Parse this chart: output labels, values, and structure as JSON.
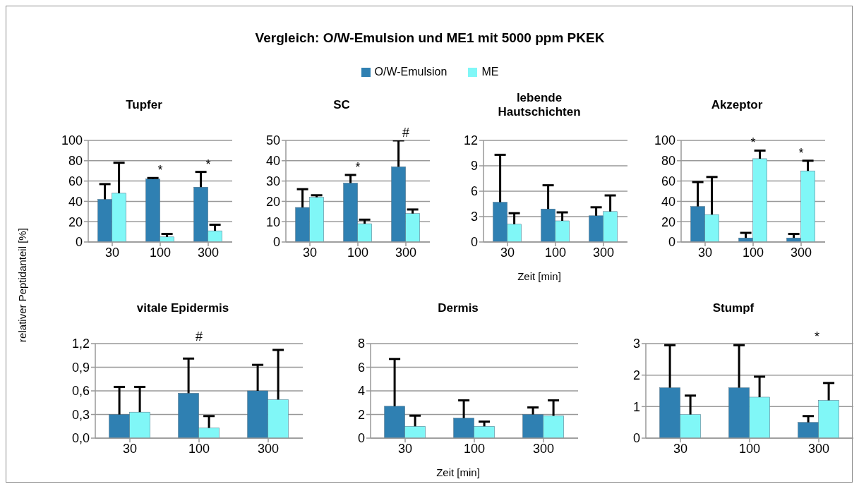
{
  "chart_data": [
    {
      "type": "other",
      "title": "Vergleich: O/W-Emulsion und ME1 mit 5000 ppm PKEK"
    },
    {
      "type": "bar",
      "title": "Tupfer",
      "ylabel": "relativer Peptidanteil [%]",
      "legend": "top",
      "grid": "y",
      "categories": [
        "30",
        "100",
        "300"
      ],
      "ylim": [
        0,
        100
      ],
      "yticks": [
        0,
        20,
        40,
        60,
        80,
        100
      ],
      "series": [
        {
          "name": "O/W-Emulsion",
          "color": "#2f80b2",
          "values": [
            42,
            62,
            54
          ],
          "errors": [
            [
              42,
              57
            ],
            [
              62,
              63
            ],
            [
              54,
              69
            ]
          ]
        },
        {
          "name": "ME",
          "color": "#80f7f7",
          "values": [
            48,
            5,
            11
          ],
          "errors": [
            [
              48,
              78
            ],
            [
              5,
              8
            ],
            [
              11,
              17
            ]
          ]
        }
      ],
      "annotations": [
        {
          "text": "*",
          "x": "100",
          "y": 63
        },
        {
          "text": "*",
          "x": "300",
          "y": 69
        }
      ]
    },
    {
      "type": "bar",
      "title": "SC",
      "grid": "y",
      "categories": [
        "30",
        "100",
        "300"
      ],
      "ylim": [
        0,
        50
      ],
      "yticks": [
        0,
        10,
        20,
        30,
        40,
        50
      ],
      "series": [
        {
          "color": "#2f80b2",
          "values": [
            17,
            29,
            37
          ],
          "errors": [
            [
              17,
              26
            ],
            [
              29,
              33
            ],
            [
              37,
              50
            ]
          ]
        },
        {
          "color": "#80f7f7",
          "values": [
            22,
            9,
            14
          ],
          "errors": [
            [
              22,
              23
            ],
            [
              9,
              11
            ],
            [
              14,
              16
            ]
          ]
        }
      ],
      "annotations": [
        {
          "text": "*",
          "x": "100",
          "y": 33
        },
        {
          "text": "#",
          "x": "300",
          "y": 50
        }
      ]
    },
    {
      "type": "bar",
      "title": "lebende Hautschichten",
      "xlabel": "Zeit [min]",
      "grid": "y",
      "categories": [
        "30",
        "100",
        "300"
      ],
      "ylim": [
        0,
        12
      ],
      "yticks": [
        0,
        3,
        6,
        9,
        12
      ],
      "series": [
        {
          "color": "#2f80b2",
          "values": [
            4.7,
            3.9,
            3.1
          ],
          "errors": [
            [
              4.7,
              10.3
            ],
            [
              3.9,
              6.7
            ],
            [
              3.1,
              4.1
            ]
          ]
        },
        {
          "color": "#80f7f7",
          "values": [
            2.1,
            2.5,
            3.6
          ],
          "errors": [
            [
              2.1,
              3.4
            ],
            [
              2.5,
              3.5
            ],
            [
              3.6,
              5.5
            ]
          ]
        }
      ]
    },
    {
      "type": "bar",
      "title": "Akzeptor",
      "grid": "y",
      "categories": [
        "30",
        "100",
        "300"
      ],
      "ylim": [
        0,
        100
      ],
      "yticks": [
        0,
        20,
        40,
        60,
        80,
        100
      ],
      "series": [
        {
          "color": "#2f80b2",
          "values": [
            35,
            4,
            4
          ],
          "errors": [
            [
              35,
              59
            ],
            [
              4,
              9
            ],
            [
              4,
              8
            ]
          ]
        },
        {
          "color": "#80f7f7",
          "values": [
            27,
            82,
            70
          ],
          "errors": [
            [
              27,
              64
            ],
            [
              82,
              90
            ],
            [
              70,
              80
            ]
          ]
        }
      ],
      "annotations": [
        {
          "text": "*",
          "x": "100",
          "y": 90
        },
        {
          "text": "*",
          "x": "300",
          "y": 80
        }
      ]
    },
    {
      "type": "bar",
      "title": "vitale Epidermis",
      "grid": "y",
      "categories": [
        "30",
        "100",
        "300"
      ],
      "ylim": [
        0,
        1.2
      ],
      "yticks": [
        {
          "value": 0,
          "label": "0,0"
        },
        {
          "value": 0.3,
          "label": "0,3"
        },
        {
          "value": 0.6,
          "label": "0,6"
        },
        {
          "value": 0.9,
          "label": "0,9"
        },
        {
          "value": 1.2,
          "label": "1,2"
        }
      ],
      "series": [
        {
          "color": "#2f80b2",
          "values": [
            0.3,
            0.57,
            0.6
          ],
          "errors": [
            [
              0.3,
              0.65
            ],
            [
              0.57,
              1.01
            ],
            [
              0.6,
              0.93
            ]
          ]
        },
        {
          "color": "#80f7f7",
          "values": [
            0.33,
            0.13,
            0.49
          ],
          "errors": [
            [
              0.33,
              0.65
            ],
            [
              0.13,
              0.28
            ],
            [
              0.49,
              1.12
            ]
          ]
        }
      ],
      "annotations": [
        "#"
      ]
    },
    {
      "type": "bar",
      "title": "Dermis",
      "xlabel": "Zeit [min]",
      "grid": "y",
      "categories": [
        "30",
        "100",
        "300"
      ],
      "ylim": [
        0,
        8
      ],
      "yticks": [
        0,
        2,
        4,
        6,
        8
      ],
      "series": [
        {
          "color": "#2f80b2",
          "values": [
            2.7,
            1.7,
            2.0
          ],
          "errors": [
            [
              2.7,
              6.7
            ],
            [
              1.7,
              3.2
            ],
            [
              2.0,
              2.6
            ]
          ]
        },
        {
          "color": "#80f7f7",
          "values": [
            1.0,
            1.0,
            1.9
          ],
          "errors": [
            [
              1.0,
              1.9
            ],
            [
              1.0,
              1.4
            ],
            [
              1.9,
              3.2
            ]
          ]
        }
      ]
    },
    {
      "type": "bar",
      "title": "Stumpf",
      "grid": "y",
      "categories": [
        "30",
        "100",
        "300"
      ],
      "ylim": [
        0,
        3
      ],
      "yticks": [
        0,
        1,
        2,
        3
      ],
      "series": [
        {
          "color": "#2f80b2",
          "values": [
            1.6,
            1.6,
            0.5
          ],
          "errors": [
            [
              1.6,
              2.95
            ],
            [
              1.6,
              2.95
            ],
            [
              0.5,
              0.7
            ]
          ]
        },
        {
          "color": "#80f7f7",
          "values": [
            0.75,
            1.3,
            1.2
          ],
          "errors": [
            [
              0.75,
              1.35
            ],
            [
              1.3,
              1.95
            ],
            [
              1.2,
              1.75
            ]
          ]
        }
      ],
      "annotations": [
        "*"
      ]
    }
  ]
}
